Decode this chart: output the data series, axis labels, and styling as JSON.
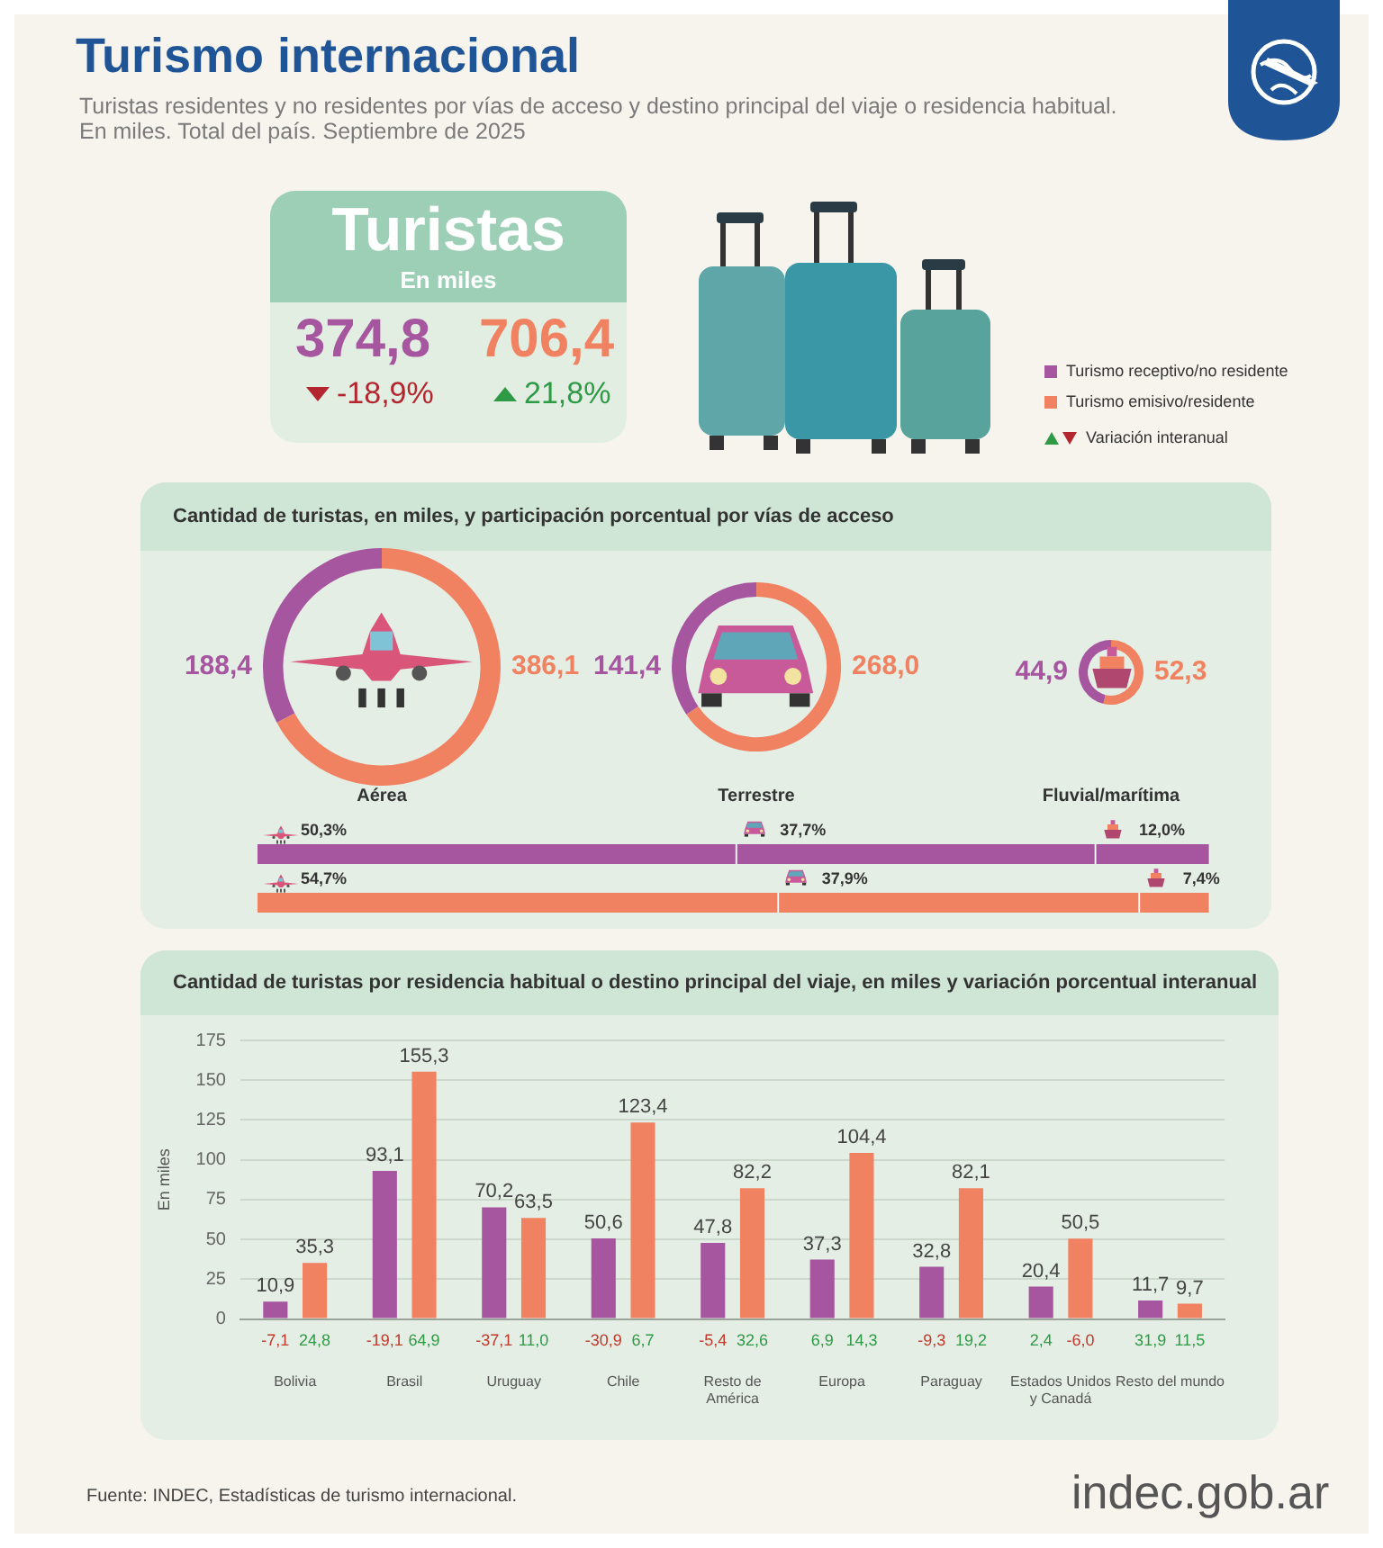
{
  "chart_data": [
    {
      "type": "other",
      "title": "Turismo internacional",
      "subtitle": "Turistas residentes y no residentes por vías de acceso y destino principal del viaje o residencia habitual.\nEn miles. Total del país. Septiembre de 2025",
      "colors": [
        "#a6559f",
        "#f08262"
      ],
      "annotations": [
        "Turistas",
        "En miles",
        "374,8",
        "-18,9%",
        "706,4",
        "21,8%",
        "Turismo receptivo/no residente",
        "Turismo emisivo/residente",
        "Variación interanual"
      ]
    },
    {
      "type": "other",
      "title": "Cantidad de turistas, en miles, y participación porcentual por vías de acceso"
    },
    {
      "type": "donut",
      "title": "Aérea",
      "categories": [
        null,
        null
      ],
      "values": [
        188.4,
        386.1
      ],
      "colors": [
        "#a6559f",
        "#f08262"
      ],
      "value_labels": [
        "188,4",
        "386,1"
      ]
    },
    {
      "type": "donut",
      "title": "Terrestre",
      "categories": [
        null,
        null
      ],
      "values": [
        141.4,
        268.0
      ],
      "colors": [
        "#a6559f",
        "#f08262"
      ],
      "value_labels": [
        "141,4",
        "268,0"
      ]
    },
    {
      "type": "donut",
      "title": "Fluvial/marítima",
      "categories": [
        null,
        null
      ],
      "values": [
        44.9,
        52.3
      ],
      "colors": [
        "#a6559f",
        "#f08262"
      ],
      "value_labels": [
        "44,9",
        "52,3"
      ]
    },
    {
      "type": "bar",
      "orientation": "horizontal",
      "stacked": true,
      "categories": [
        null,
        null
      ],
      "xlim": [
        0,
        100
      ],
      "tick_labels": false,
      "series": [
        {
          "values": [
            50.3,
            54.7
          ],
          "colors": [
            "#a6559f",
            "#f08262"
          ],
          "value_labels": [
            "50,3%",
            "54,7%"
          ]
        },
        {
          "values": [
            37.7,
            37.9
          ],
          "colors": [
            "#a6559f",
            "#f08262"
          ],
          "value_labels": [
            "37,7%",
            "37,9%"
          ]
        },
        {
          "values": [
            12.0,
            7.4
          ],
          "colors": [
            "#a6559f",
            "#f08262"
          ],
          "value_labels": [
            "12,0%",
            "7,4%"
          ]
        }
      ]
    },
    {
      "type": "bar",
      "title": "Cantidad de turistas por residencia habitual o destino principal del viaje, en miles y variación porcentual interanual",
      "ylabel": "En miles",
      "categories": [
        "Bolivia",
        "Brasil",
        "Uruguay",
        "Chile",
        "Resto de\nAmérica",
        "Europa",
        "Paraguay",
        "Estados Unidos\ny Canadá",
        "Resto del mundo"
      ],
      "series": [
        {
          "color": "#a6559f",
          "values": [
            10.9,
            93.1,
            70.2,
            50.6,
            47.8,
            37.3,
            32.8,
            20.4,
            11.7
          ],
          "value_labels": [
            "10,9",
            "93,1",
            "70,2",
            "50,6",
            "47,8",
            "37,3",
            "32,8",
            "20,4",
            "11,7"
          ]
        },
        {
          "color": "#f08262",
          "values": [
            35.3,
            155.3,
            63.5,
            123.4,
            82.2,
            104.4,
            82.1,
            50.5,
            9.7
          ],
          "value_labels": [
            "35,3",
            "155,3",
            "63,5",
            "123,4",
            "82,2",
            "104,4",
            "82,1",
            "50,5",
            "9,7"
          ]
        }
      ],
      "ylim": [
        0,
        175
      ],
      "yticks": [
        0,
        25,
        50,
        75,
        100,
        125,
        150,
        175
      ],
      "grid": "y",
      "annotations": [
        "-7,1",
        "24,8",
        "-19,1",
        "64,9",
        "-37,1",
        "11,0",
        "-30,9",
        "6,7",
        "-5,4",
        "32,6",
        "6,9",
        "14,3",
        "-9,3",
        "19,2",
        "2,4",
        "-6,0",
        "31,9",
        "11,5",
        "Fuente: INDEC, Estadísticas de turismo internacional.",
        "indec.gob.ar"
      ]
    }
  ]
}
